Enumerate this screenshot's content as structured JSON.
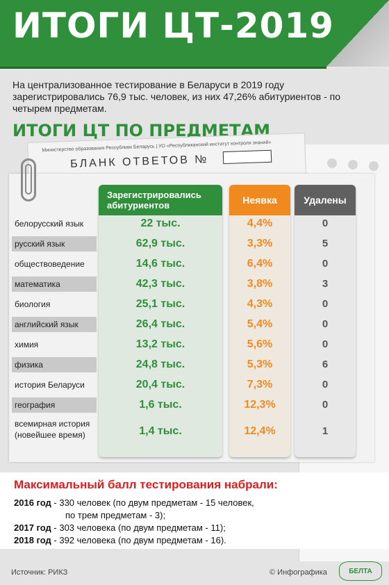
{
  "header": {
    "title": "ИТОГИ ЦТ-2019",
    "intro": "На централизованное тестирование в Беларуси в 2019 году зарегистрировались 76,9 тыс. человек, из них 47,26% абитуриентов - по четырем предметам.",
    "subtitle": "ИТОГИ ЦТ ПО ПРЕДМЕТАМ"
  },
  "sheet": {
    "line1": "Министерство образования Республики Беларусь | УО «Республиканский институт контроля знаний»",
    "line2": "БЛАНК ОТВЕТОВ №"
  },
  "table": {
    "headers": {
      "registered": "Зарегистрировались абитуриентов",
      "absent": "Неявка",
      "removed": "Удалены"
    },
    "rows": [
      {
        "subject": "белорусский язык",
        "registered": "22 тыс.",
        "absent": "4,4%",
        "removed": "0"
      },
      {
        "subject": "русский язык",
        "registered": "62,9 тыс.",
        "absent": "3,3%",
        "removed": "5"
      },
      {
        "subject": "обществоведение",
        "registered": "14,6 тыс.",
        "absent": "6,4%",
        "removed": "0"
      },
      {
        "subject": "математика",
        "registered": "42,3 тыс.",
        "absent": "3,8%",
        "removed": "3"
      },
      {
        "subject": "биология",
        "registered": "25,1 тыс.",
        "absent": "4,3%",
        "removed": "0"
      },
      {
        "subject": "английский язык",
        "registered": "26,4 тыс.",
        "absent": "5,4%",
        "removed": "0"
      },
      {
        "subject": "химия",
        "registered": "13,2 тыс.",
        "absent": "5,6%",
        "removed": "0"
      },
      {
        "subject": "физика",
        "registered": "24,8 тыс.",
        "absent": "5,3%",
        "removed": "6"
      },
      {
        "subject": "история Беларуси",
        "registered": "20,4 тыс.",
        "absent": "7,3%",
        "removed": "0"
      },
      {
        "subject": "география",
        "registered": "1,6 тыс.",
        "absent": "12,3%",
        "removed": "0"
      },
      {
        "subject": "всемирная история (новейшее время)",
        "subject_line1": "всемирная история",
        "subject_line2": "(новейшее время)",
        "registered": "1,4 тыс.",
        "absent": "12,4%",
        "removed": "1"
      }
    ]
  },
  "bottom": {
    "title": "Максимальный балл тестирования набрали:",
    "lines": [
      {
        "year": "2016 год",
        "text": " - 330 человек (по двум предметам - 15 человек,"
      },
      {
        "year": "",
        "text": "по трем предметам - 3);"
      },
      {
        "year": "2017 год",
        "text": " - 303 человека (по двум предметам - 11);"
      },
      {
        "year": "2018 год",
        "text": " - 392 человека (по двум предметам - 16)."
      }
    ]
  },
  "footer": {
    "source": "Источник: РИКЗ",
    "copyright": "© Инфографика",
    "logo": "БЕЛТА"
  },
  "colors": {
    "green": "#2f8f3a",
    "orange": "#f08a1e",
    "gray": "#606060",
    "red": "#d92020"
  }
}
